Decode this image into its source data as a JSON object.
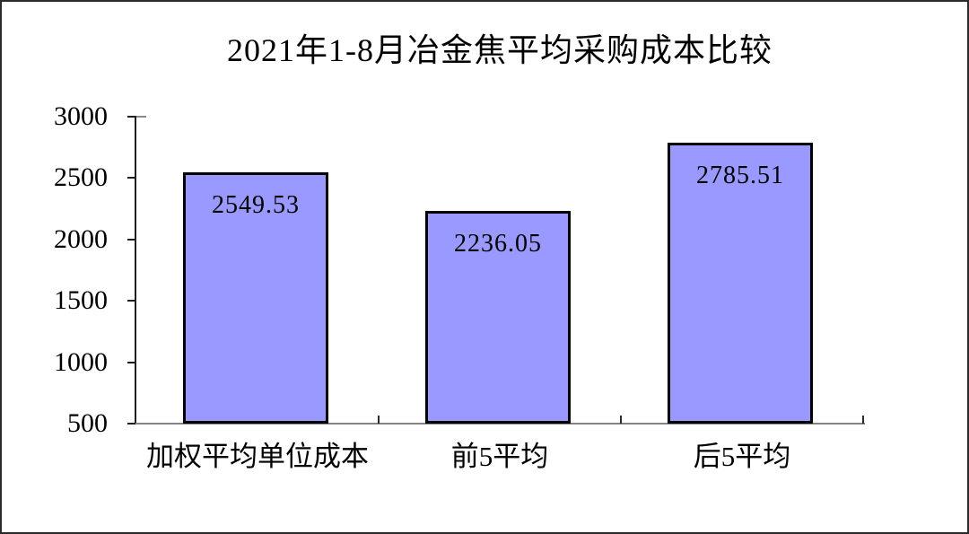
{
  "page": {
    "background": "#ffffff",
    "border_color": "#2b2b2b"
  },
  "chart_data": {
    "type": "bar",
    "title": "2021年1-8月冶金焦平均采购成本比较",
    "categories": [
      "加权平均单位成本",
      "前5平均",
      "后5平均"
    ],
    "values": [
      2549.53,
      2236.05,
      2785.51
    ],
    "value_labels": [
      "2549.53",
      "2236.05",
      "2785.51"
    ],
    "xlabel": "",
    "ylabel": "",
    "ylim": [
      500,
      3000
    ],
    "y_ticks": [
      500,
      1000,
      1500,
      2000,
      2500,
      3000
    ],
    "grid": false,
    "legend": false,
    "bar_fill_color": "#9999ff",
    "bar_border_color": "#000000",
    "y_axis_color": "#1f1f1f",
    "x_axis_color": "#828282",
    "text_color": "#000000"
  }
}
